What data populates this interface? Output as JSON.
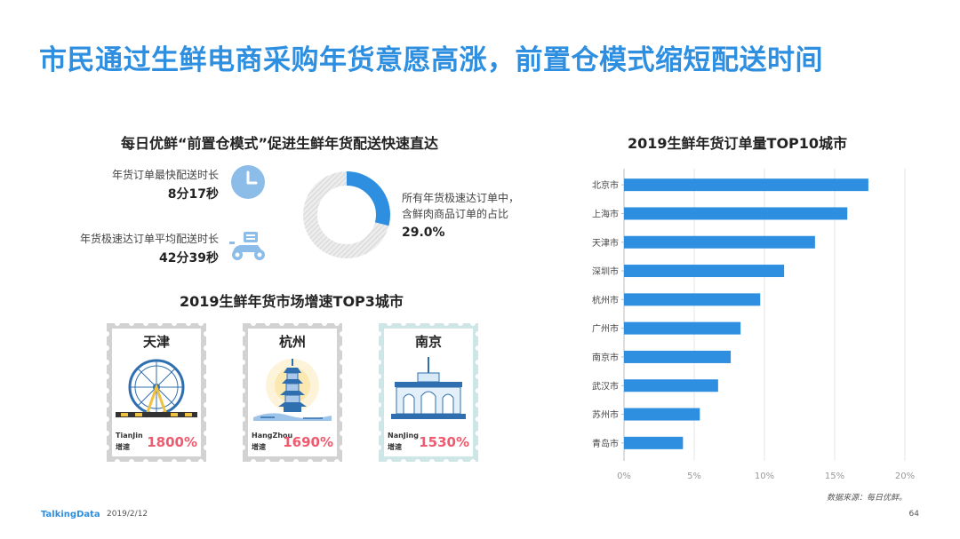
{
  "page": {
    "title": "市民通过生鲜电商采购年货意愿高涨，前置仓模式缩短配送时间",
    "footer_brand": "TalkingData",
    "footer_date": "2019/2/12",
    "page_number": "64",
    "source": "数据来源：每日优鲜。"
  },
  "delivery": {
    "title": "每日优鲜“前置仓模式”促进生鲜年货配送快速直达",
    "fastest_label": "年货订单最快配送时长",
    "fastest_value": "8分17秒",
    "fastest_icon": "clock-icon",
    "average_label": "年货极速达订单平均配送时长",
    "average_value": "42分39秒",
    "average_icon": "scooter-icon",
    "share_text_1": "所有年货极速达订单中，",
    "share_text_2": "含鲜肉商品订单的占比",
    "share_value": "29.0%",
    "share_fraction": 0.29,
    "colors": {
      "highlight": "#2e8fe0",
      "rest": "#d9d9d9"
    }
  },
  "top3": {
    "title": "2019生鲜年货市场增速TOP3城市",
    "growth_label": "增速",
    "cities": [
      {
        "name": "天津",
        "pinyin": "TianJin",
        "growth": "1800%",
        "art": "ferris-wheel-icon"
      },
      {
        "name": "杭州",
        "pinyin": "HangZhou",
        "growth": "1690%",
        "art": "pagoda-icon"
      },
      {
        "name": "南京",
        "pinyin": "NanJing",
        "growth": "1530%",
        "art": "gate-building-icon"
      }
    ]
  },
  "chart_data": {
    "type": "bar",
    "orientation": "horizontal",
    "title": "2019生鲜年货订单量TOP10城市",
    "categories": [
      "北京市",
      "上海市",
      "天津市",
      "深圳市",
      "杭州市",
      "广州市",
      "南京市",
      "武汉市",
      "苏州市",
      "青岛市"
    ],
    "values": [
      17.4,
      15.9,
      13.6,
      11.4,
      9.7,
      8.3,
      7.6,
      6.7,
      5.4,
      4.2
    ],
    "xlim": [
      0,
      20
    ],
    "xticks": [
      "0%",
      "5%",
      "10%",
      "15%",
      "20%"
    ],
    "xtick_values": [
      0,
      5,
      10,
      15,
      20
    ],
    "grid": true,
    "bar_color": "#2e8fe0"
  }
}
